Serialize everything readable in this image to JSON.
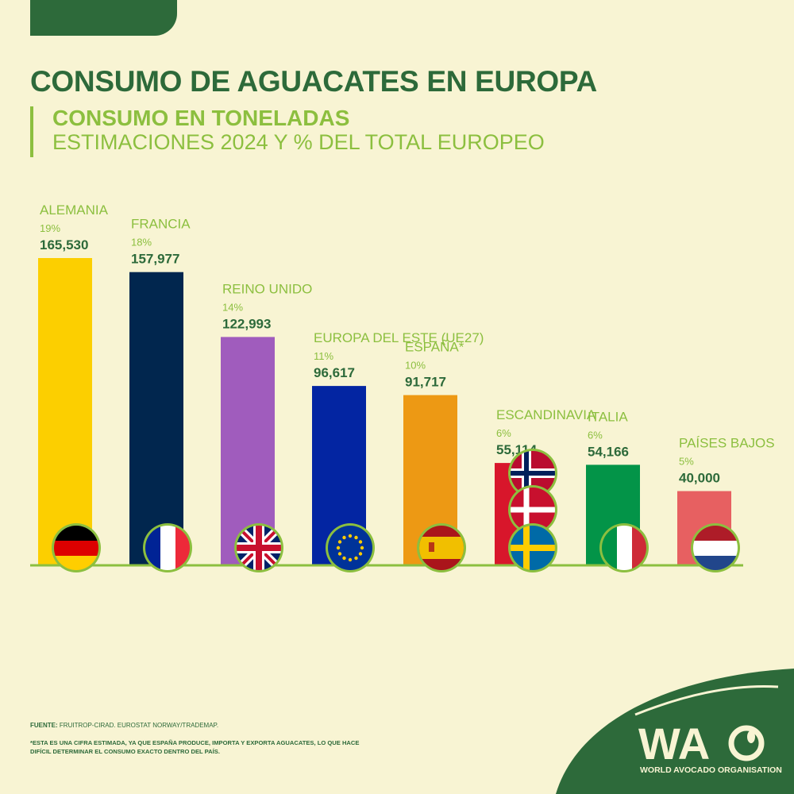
{
  "header": {
    "title": "CONSUMO DE AGUACATES EN EUROPA",
    "subtitle": "CONSUMO EN TONELADAS",
    "subtitle2": "ESTIMACIONES 2024 Y % DEL TOTAL EUROPEO"
  },
  "chart_data": {
    "type": "bar",
    "title": "CONSUMO DE AGUACATES EN EUROPA",
    "ylabel": "Consumo en toneladas",
    "categories": [
      "ALEMANIA",
      "FRANCIA",
      "REINO UNIDO",
      "EUROPA DEL ESTE (UE27)",
      "ESPAÑA*",
      "ESCANDINAVIA",
      "ITALIA",
      "PAÍSES BAJOS"
    ],
    "values": [
      165530,
      157977,
      122993,
      96617,
      91717,
      55114,
      54166,
      40000
    ],
    "value_labels": [
      "165,530",
      "157,977",
      "122,993",
      "96,617",
      "91,717",
      "55,114",
      "54,166",
      "40,000"
    ],
    "percent_labels": [
      "19%",
      "18%",
      "14%",
      "11%",
      "10%",
      "6%",
      "6%",
      "5%"
    ],
    "colors": [
      "#fccf00",
      "#01264e",
      "#a05cbd",
      "#0325a2",
      "#ed9914",
      "#d8162b",
      "#039448",
      "#e76061"
    ],
    "flags": [
      [
        "germany"
      ],
      [
        "france"
      ],
      [
        "uk"
      ],
      [
        "eu"
      ],
      [
        "spain"
      ],
      [
        "norway",
        "denmark",
        "sweden"
      ],
      [
        "italy"
      ],
      [
        "netherlands"
      ]
    ]
  },
  "footer": {
    "source_label": "FUENTE:",
    "source_text": "FRUITROP-CIRAD. EUROSTAT NORWAY/TRADEMAP.",
    "note": "*ESTA ES UNA CIFRA ESTIMADA, YA QUE ESPAÑA PRODUCE, IMPORTA Y EXPORTA AGUACATES, LO QUE HACE DIFÍCIL DETERMINAR EL CONSUMO EXACTO DENTRO DEL PAÍS."
  },
  "logo": {
    "acronym_wa": "WA",
    "name": "WORLD AVOCADO ORGANISATION"
  },
  "colors": {
    "background": "#f8f4d3",
    "dark_green": "#2d6a3a",
    "light_green": "#8cbf3f"
  }
}
